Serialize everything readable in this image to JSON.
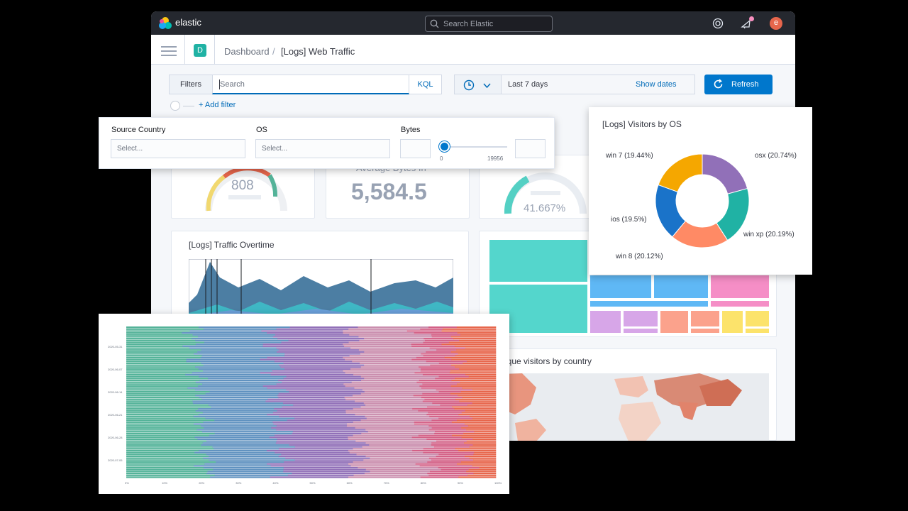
{
  "app": {
    "brand": "elastic",
    "global_search_placeholder": "Search Elastic",
    "avatar_initial": "e",
    "space_initial": "D"
  },
  "breadcrumb": {
    "parent": "Dashboard",
    "separator": "/",
    "current": "[Logs] Web Traffic"
  },
  "query_bar": {
    "filters_label": "Filters",
    "search_placeholder": "Search",
    "language": "KQL",
    "date_range": "Last 7 days",
    "show_dates": "Show dates",
    "refresh": "Refresh",
    "add_filter": "+ Add filter"
  },
  "controls": {
    "source_country": {
      "label": "Source Country",
      "placeholder": "Select..."
    },
    "os": {
      "label": "OS",
      "placeholder": "Select..."
    },
    "bytes": {
      "label": "Bytes",
      "min": "0",
      "max": "19956"
    }
  },
  "panels": {
    "gauge1_value": "808",
    "metric_title": "Average Bytes In",
    "metric_value": "5,584.5",
    "gauge2_value": "41.667%",
    "traffic_title": "[Logs] Traffic Overtime",
    "map_title": "] Unique visitors by country"
  },
  "colors": {
    "teal": "#54b399",
    "blue": "#6092c0",
    "purple": "#9170b8",
    "pink": "#ca8eae",
    "rose": "#d36086",
    "orange": "#e7664c",
    "accent": "#0077cc"
  },
  "chart_data": [
    {
      "type": "pie",
      "title": "[Logs] Visitors by OS",
      "donut": true,
      "slices": [
        {
          "label": "osx (20.74%)",
          "value": 20.74,
          "color": "#9170b8"
        },
        {
          "label": "win xp (20.19%)",
          "value": 20.19,
          "color": "#20b2a4"
        },
        {
          "label": "win 8 (20.12%)",
          "value": 20.12,
          "color": "#ff8a65"
        },
        {
          "label": "ios (19.5%)",
          "value": 19.5,
          "color": "#1a73c9"
        },
        {
          "label": "win 7 (19.44%)",
          "value": 19.44,
          "color": "#f5a700"
        }
      ]
    },
    {
      "type": "bar",
      "orientation": "horizontal",
      "stacked": "percent",
      "y_tick_labels": [
        "2020-05-31",
        "2020-06-07",
        "2020-06-14",
        "2020-06-21",
        "2020-06-28",
        "2020-07-05"
      ],
      "x_tick_labels": [
        "0%",
        "10%",
        "20%",
        "30%",
        "40%",
        "50%",
        "60%",
        "70%",
        "80%",
        "90%",
        "100%"
      ],
      "xlim": [
        0,
        100
      ],
      "series_colors": [
        "#54b399",
        "#6092c0",
        "#9170b8",
        "#ca8eae",
        "#d36086",
        "#e7664c"
      ],
      "typical_shares": [
        18,
        22,
        21,
        19,
        8,
        12
      ]
    }
  ]
}
